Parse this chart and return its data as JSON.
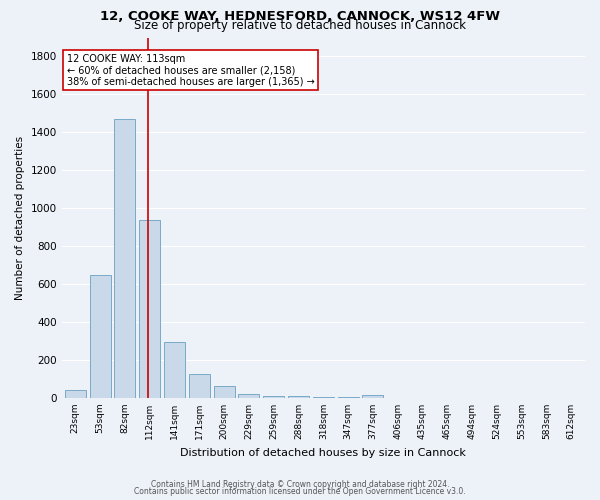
{
  "title1": "12, COOKE WAY, HEDNESFORD, CANNOCK, WS12 4FW",
  "title2": "Size of property relative to detached houses in Cannock",
  "xlabel": "Distribution of detached houses by size in Cannock",
  "ylabel": "Number of detached properties",
  "categories": [
    "23sqm",
    "53sqm",
    "82sqm",
    "112sqm",
    "141sqm",
    "171sqm",
    "200sqm",
    "229sqm",
    "259sqm",
    "288sqm",
    "318sqm",
    "347sqm",
    "377sqm",
    "406sqm",
    "435sqm",
    "465sqm",
    "494sqm",
    "524sqm",
    "553sqm",
    "583sqm",
    "612sqm"
  ],
  "values": [
    40,
    650,
    1470,
    940,
    295,
    125,
    65,
    22,
    12,
    8,
    5,
    3,
    18,
    0,
    0,
    0,
    0,
    0,
    0,
    0,
    0
  ],
  "bar_color": "#c9d9ea",
  "bar_edge_color": "#7aaac8",
  "vline_x_index": 3,
  "vline_color": "#cc0000",
  "annotation_lines": [
    "12 COOKE WAY: 113sqm",
    "← 60% of detached houses are smaller (2,158)",
    "38% of semi-detached houses are larger (1,365) →"
  ],
  "annotation_box_color": "#ffffff",
  "annotation_box_edge_color": "#cc0000",
  "ylim": [
    0,
    1900
  ],
  "yticks": [
    0,
    200,
    400,
    600,
    800,
    1000,
    1200,
    1400,
    1600,
    1800
  ],
  "footer1": "Contains HM Land Registry data © Crown copyright and database right 2024.",
  "footer2": "Contains public sector information licensed under the Open Government Licence v3.0.",
  "bg_color": "#edf2f9",
  "grid_color": "#ffffff",
  "title1_fontsize": 9.5,
  "title2_fontsize": 8.5,
  "annot_fontsize": 7.0,
  "ylabel_fontsize": 7.5,
  "xlabel_fontsize": 8.0,
  "ytick_fontsize": 7.5,
  "xtick_fontsize": 6.5,
  "footer_fontsize": 5.5
}
